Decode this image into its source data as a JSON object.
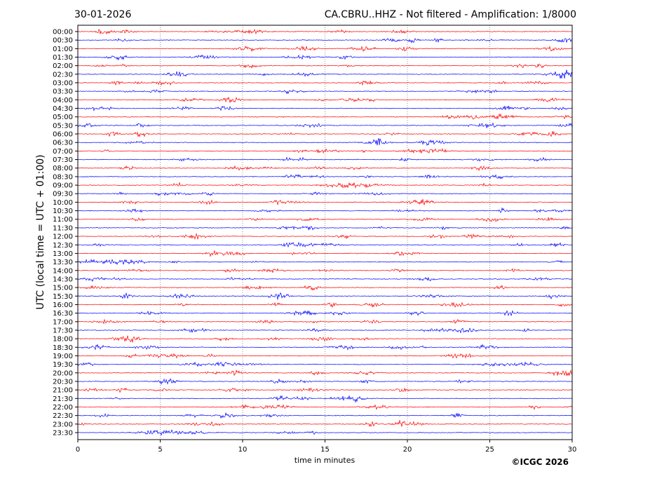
{
  "chart_data": {
    "type": "line",
    "date": "30-01-2026",
    "title": "CA.CBRU..HHZ - Not filtered - Amplification: 1/8000",
    "xlabel": "time in minutes",
    "ylabel": "UTC (local time = UTC + 01:00)",
    "xlim": [
      0,
      30
    ],
    "x_ticks": [
      0,
      5,
      10,
      15,
      20,
      25,
      30
    ],
    "grid": "vertical dotted lines at every 5 minutes",
    "colors": [
      "#ff0000",
      "#0000ff"
    ],
    "row_labels": [
      "00:00",
      "00:30",
      "01:00",
      "01:30",
      "02:00",
      "02:30",
      "03:00",
      "03:30",
      "04:00",
      "04:30",
      "05:00",
      "05:30",
      "06:00",
      "06:30",
      "07:00",
      "07:30",
      "08:00",
      "08:30",
      "09:00",
      "09:30",
      "10:00",
      "10:30",
      "11:00",
      "11:30",
      "12:00",
      "12:30",
      "13:00",
      "13:30",
      "14:00",
      "14:30",
      "15:00",
      "15:30",
      "16:00",
      "16:30",
      "17:00",
      "17:30",
      "18:00",
      "18:30",
      "19:00",
      "19:30",
      "20:00",
      "20:30",
      "21:00",
      "21:30",
      "22:00",
      "22:30",
      "23:00",
      "23:30"
    ],
    "copyright": "©ICGC 2026"
  }
}
